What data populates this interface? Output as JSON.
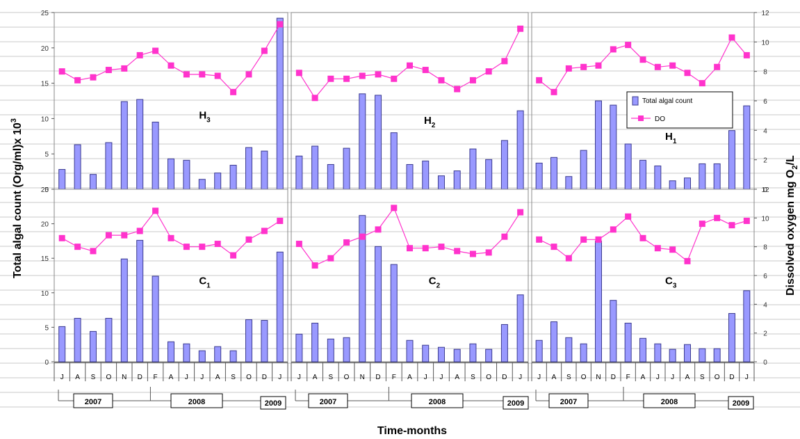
{
  "colors": {
    "bar": "#9999ff",
    "bar_stroke": "#3b3b8f",
    "do": "#ff33cc",
    "grid": "#c9c9c9"
  },
  "y_left_title": {
    "main": "Total algal count (Org/ml)x 10",
    "sup": "3"
  },
  "y_right_title": {
    "main": "Dissolved oxygen  mg O",
    "sub": "2",
    "tail": "/L"
  },
  "x_title": "Time-months",
  "months": [
    "J",
    "A",
    "S",
    "O",
    "N",
    "D",
    "F",
    "A",
    "J",
    "J",
    "A",
    "S",
    "O",
    "D",
    "J"
  ],
  "legend": {
    "bar_label": "Total algal count",
    "line_label": "DO"
  },
  "chart_data": [
    {
      "type": "bar",
      "panel": {
        "base": "H",
        "sub": "3"
      },
      "categories": [
        "J",
        "A",
        "S",
        "O",
        "N",
        "D",
        "F",
        "A",
        "J",
        "J",
        "A",
        "S",
        "O",
        "D",
        "J"
      ],
      "series": [
        {
          "name": "Total algal count",
          "type": "bar",
          "axis": "left",
          "values": [
            2.8,
            6.3,
            2.1,
            6.6,
            12.4,
            12.7,
            9.5,
            4.3,
            4.1,
            1.4,
            2.3,
            3.4,
            5.9,
            5.4,
            24.2
          ]
        },
        {
          "name": "DO",
          "type": "line",
          "axis": "right",
          "values": [
            8.0,
            7.4,
            7.6,
            8.1,
            8.2,
            9.1,
            9.4,
            8.4,
            7.8,
            7.8,
            7.7,
            6.6,
            7.8,
            9.4,
            11.2
          ]
        }
      ],
      "y_left_ticks": [
        "25",
        "20",
        "15",
        "10",
        "5",
        "0"
      ],
      "y_right_ticks": [],
      "ylim_left": [
        0,
        25
      ],
      "ylim_right": [
        0,
        12
      ]
    },
    {
      "type": "bar",
      "panel": {
        "base": "H",
        "sub": "2"
      },
      "categories": [
        "J",
        "A",
        "S",
        "O",
        "N",
        "D",
        "F",
        "A",
        "J",
        "J",
        "A",
        "S",
        "O",
        "D",
        "J"
      ],
      "series": [
        {
          "name": "Total algal count",
          "type": "bar",
          "axis": "left",
          "values": [
            4.7,
            6.1,
            3.5,
            5.8,
            13.5,
            13.3,
            8.0,
            3.5,
            4.0,
            1.9,
            2.6,
            5.7,
            4.2,
            6.9,
            11.1
          ]
        },
        {
          "name": "DO",
          "type": "line",
          "axis": "right",
          "values": [
            7.9,
            6.2,
            7.5,
            7.5,
            7.7,
            7.8,
            7.5,
            8.4,
            8.1,
            7.4,
            6.8,
            7.4,
            8.0,
            8.7,
            10.9
          ]
        }
      ],
      "y_left_ticks": [],
      "y_right_ticks": [],
      "ylim_left": [
        0,
        25
      ],
      "ylim_right": [
        0,
        12
      ]
    },
    {
      "type": "bar",
      "panel": {
        "base": "H",
        "sub": "1"
      },
      "categories": [
        "J",
        "A",
        "S",
        "O",
        "N",
        "D",
        "F",
        "A",
        "J",
        "J",
        "A",
        "S",
        "O",
        "D",
        "J"
      ],
      "series": [
        {
          "name": "Total algal count",
          "type": "bar",
          "axis": "left",
          "values": [
            3.7,
            4.5,
            1.8,
            5.5,
            12.5,
            11.9,
            6.4,
            4.1,
            3.3,
            1.2,
            1.6,
            3.6,
            3.6,
            8.3,
            11.8
          ]
        },
        {
          "name": "DO",
          "type": "line",
          "axis": "right",
          "values": [
            7.4,
            6.6,
            8.2,
            8.3,
            8.4,
            9.5,
            9.8,
            8.8,
            8.3,
            8.4,
            7.9,
            7.2,
            8.3,
            10.3,
            9.1
          ]
        }
      ],
      "y_left_ticks": [],
      "y_right_ticks": [
        "12",
        "10",
        "8",
        "6",
        "4",
        "2",
        "0"
      ],
      "ylim_left": [
        0,
        25
      ],
      "ylim_right": [
        0,
        12
      ]
    },
    {
      "type": "bar",
      "panel": {
        "base": "C",
        "sub": "1"
      },
      "categories": [
        "J",
        "A",
        "S",
        "O",
        "N",
        "D",
        "F",
        "A",
        "J",
        "J",
        "A",
        "S",
        "O",
        "D",
        "J"
      ],
      "series": [
        {
          "name": "Total algal count",
          "type": "bar",
          "axis": "left",
          "values": [
            5.1,
            6.3,
            4.4,
            6.3,
            14.9,
            17.6,
            12.4,
            2.9,
            2.6,
            1.6,
            2.2,
            1.6,
            6.1,
            6.0,
            15.9
          ]
        },
        {
          "name": "DO",
          "type": "line",
          "axis": "right",
          "values": [
            8.6,
            8.0,
            7.7,
            8.8,
            8.8,
            9.1,
            10.5,
            8.6,
            8.0,
            8.0,
            8.2,
            7.4,
            8.5,
            9.1,
            9.8
          ]
        }
      ],
      "y_left_ticks": [
        "25",
        "20",
        "15",
        "10",
        "5",
        "0"
      ],
      "y_right_ticks": [],
      "ylim_left": [
        0,
        25
      ],
      "ylim_right": [
        0,
        12
      ]
    },
    {
      "type": "bar",
      "panel": {
        "base": "C",
        "sub": "2"
      },
      "categories": [
        "J",
        "A",
        "S",
        "O",
        "N",
        "D",
        "F",
        "A",
        "J",
        "J",
        "A",
        "S",
        "O",
        "D",
        "J"
      ],
      "series": [
        {
          "name": "Total algal count",
          "type": "bar",
          "axis": "left",
          "values": [
            4.0,
            5.6,
            3.3,
            3.5,
            21.2,
            16.7,
            14.1,
            3.1,
            2.4,
            2.1,
            1.8,
            2.6,
            1.8,
            5.4,
            9.7
          ]
        },
        {
          "name": "DO",
          "type": "line",
          "axis": "right",
          "values": [
            8.2,
            6.7,
            7.2,
            8.3,
            8.7,
            9.2,
            10.7,
            7.9,
            7.9,
            8.0,
            7.7,
            7.5,
            7.6,
            8.7,
            10.4
          ]
        }
      ],
      "y_left_ticks": [],
      "y_right_ticks": [],
      "ylim_left": [
        0,
        25
      ],
      "ylim_right": [
        0,
        12
      ]
    },
    {
      "type": "bar",
      "panel": {
        "base": "C",
        "sub": "3"
      },
      "categories": [
        "J",
        "A",
        "S",
        "O",
        "N",
        "D",
        "F",
        "A",
        "J",
        "J",
        "A",
        "S",
        "O",
        "D",
        "J"
      ],
      "series": [
        {
          "name": "Total algal count",
          "type": "bar",
          "axis": "left",
          "values": [
            3.1,
            5.8,
            3.5,
            2.6,
            17.5,
            8.9,
            5.6,
            3.4,
            2.6,
            1.8,
            2.5,
            1.9,
            1.9,
            7.0,
            10.3
          ]
        },
        {
          "name": "DO",
          "type": "line",
          "axis": "right",
          "values": [
            8.5,
            8.0,
            7.2,
            8.5,
            8.5,
            9.2,
            10.1,
            8.6,
            7.9,
            7.8,
            7.0,
            9.6,
            10.0,
            9.5,
            9.8
          ]
        }
      ],
      "y_left_ticks": [],
      "y_right_ticks": [
        "12",
        "10",
        "8",
        "6",
        "4",
        "2",
        "0"
      ],
      "ylim_left": [
        0,
        25
      ],
      "ylim_right": [
        0,
        12
      ]
    }
  ],
  "years": [
    {
      "label": "2007"
    },
    {
      "label": "2008"
    },
    {
      "label": "2009"
    }
  ]
}
